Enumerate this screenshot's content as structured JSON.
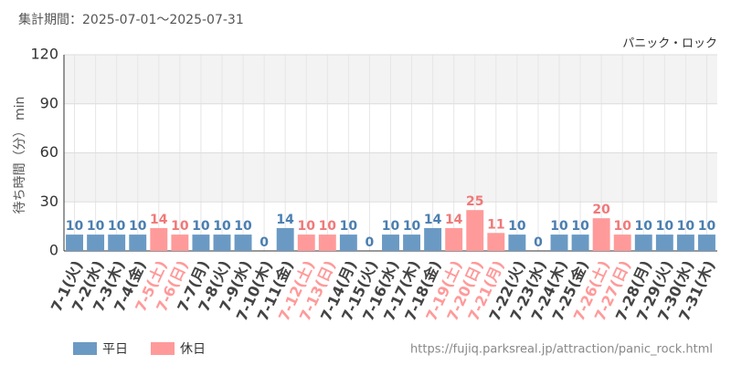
{
  "chart_data": {
    "type": "bar",
    "subtitle": "集計期間：2025-07-01～2025-07-31",
    "title": "パニック・ロック",
    "y_label": "待ち時間（分） min",
    "source": "https://fujiq.parksreal.jp/attraction/panic_rock.html",
    "categories": [
      "7-1(火)",
      "7-2(水)",
      "7-3(木)",
      "7-4(金)",
      "7-5(土)",
      "7-6(日)",
      "7-7(月)",
      "7-8(火)",
      "7-9(水)",
      "7-10(木)",
      "7-11(金)",
      "7-12(土)",
      "7-13(日)",
      "7-14(月)",
      "7-15(火)",
      "7-16(水)",
      "7-17(木)",
      "7-18(金)",
      "7-19(土)",
      "7-20(日)",
      "7-21(月)",
      "7-22(火)",
      "7-23(水)",
      "7-24(木)",
      "7-25(金)",
      "7-26(土)",
      "7-27(日)",
      "7-28(月)",
      "7-29(火)",
      "7-30(水)",
      "7-31(木)"
    ],
    "series": [
      {
        "name": "平日",
        "color": "#6a9ac4",
        "label_color": "#4a7eb0",
        "values": [
          10,
          10,
          10,
          10,
          null,
          null,
          10,
          10,
          10,
          0,
          14,
          null,
          null,
          10,
          0,
          10,
          10,
          14,
          null,
          null,
          null,
          10,
          0,
          10,
          10,
          null,
          null,
          10,
          10,
          10,
          10
        ]
      },
      {
        "name": "休日",
        "color": "#ff9a9a",
        "label_color": "#f07878",
        "values": [
          null,
          null,
          null,
          null,
          14,
          10,
          null,
          null,
          null,
          null,
          null,
          10,
          10,
          null,
          null,
          null,
          null,
          null,
          14,
          25,
          11,
          null,
          null,
          null,
          null,
          20,
          10,
          null,
          null,
          null,
          null
        ]
      }
    ],
    "ylim": [
      0,
      120
    ],
    "yticks": [
      0,
      30,
      60,
      90,
      120
    ],
    "grid": true
  }
}
